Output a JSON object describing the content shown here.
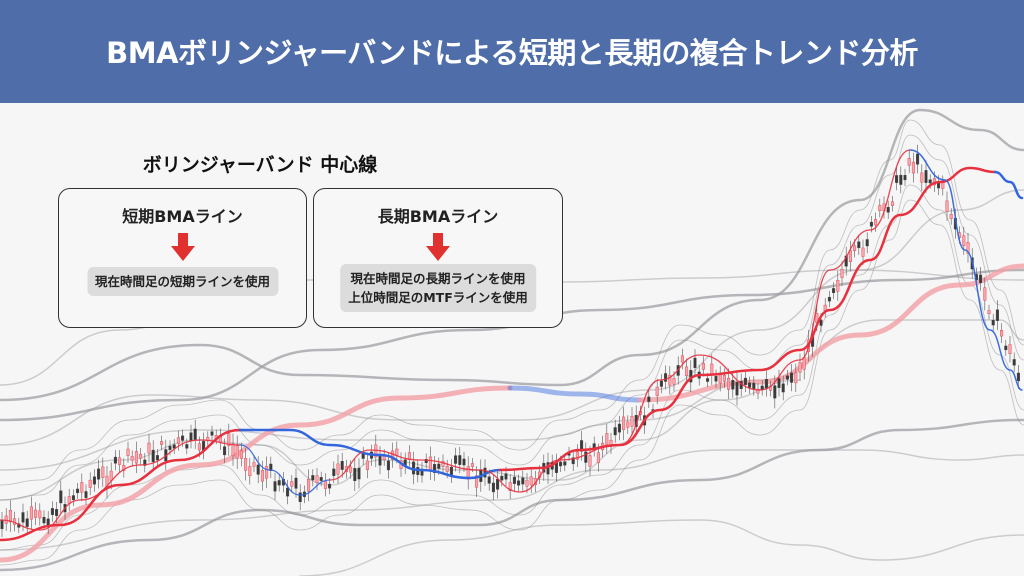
{
  "header": {
    "title": "BMAボリンジャーバンドによる短期と長期の複合トレンド分析"
  },
  "diagram": {
    "heading": "ボリンジャーバンド 中心線",
    "boxes": [
      {
        "title": "短期BMAライン",
        "lines": [
          "現在時間足の短期ラインを使用"
        ]
      },
      {
        "title": "長期BMAライン",
        "lines": [
          "現在時間足の長期ラインを使用",
          "上位時間足のMTFラインを使用"
        ]
      }
    ],
    "colors": {
      "header": "#4f6ea9",
      "short_line": "#e8313f",
      "long_line": "#f2a0a6",
      "down_segment": "#3366dd",
      "arrow": "#e0312f",
      "bands": "#9a9aa0"
    }
  }
}
